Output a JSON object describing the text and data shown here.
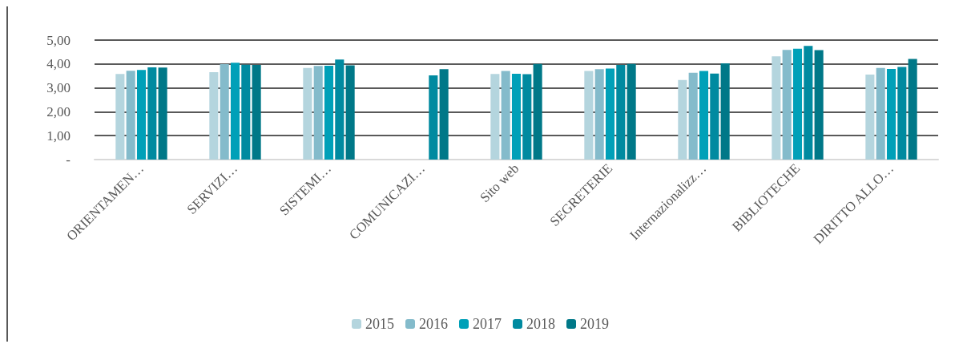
{
  "chart_data": {
    "type": "bar",
    "categories": [
      "ORIENTAMEN…",
      "SERVIZI…",
      "SISTEMI…",
      "COMUNICAZI…",
      "Sito web",
      "SEGRETERIE",
      "Internazionalizz…",
      "BIBLIOTECHE",
      "DIRITTO ALLO…"
    ],
    "series": [
      {
        "name": "2015",
        "color": "#b4d5de",
        "values": [
          3.58,
          3.66,
          3.83,
          null,
          3.58,
          3.71,
          3.33,
          4.32,
          3.56
        ]
      },
      {
        "name": "2016",
        "color": "#84bbcb",
        "values": [
          3.72,
          3.99,
          3.92,
          null,
          3.71,
          3.78,
          3.63,
          4.59,
          3.83
        ]
      },
      {
        "name": "2017",
        "color": "#00a0b8",
        "values": [
          3.75,
          4.05,
          3.93,
          null,
          3.59,
          3.81,
          3.71,
          4.64,
          3.79
        ]
      },
      {
        "name": "2018",
        "color": "#008aa0",
        "values": [
          3.86,
          3.97,
          4.19,
          3.52,
          3.57,
          3.96,
          3.6,
          4.76,
          3.88
        ]
      },
      {
        "name": "2019",
        "color": "#007888",
        "values": [
          3.85,
          3.96,
          3.94,
          3.78,
          4.0,
          4.0,
          4.03,
          4.58,
          4.21
        ]
      }
    ],
    "ylim": [
      0,
      5
    ],
    "yticks": [
      {
        "value": 0,
        "label": "-"
      },
      {
        "value": 1,
        "label": "1,00"
      },
      {
        "value": 2,
        "label": "2,00"
      },
      {
        "value": 3,
        "label": "3,00"
      },
      {
        "value": 4,
        "label": "4,00"
      },
      {
        "value": 5,
        "label": "5,00"
      }
    ],
    "grid": "y",
    "legend": "bottom"
  }
}
